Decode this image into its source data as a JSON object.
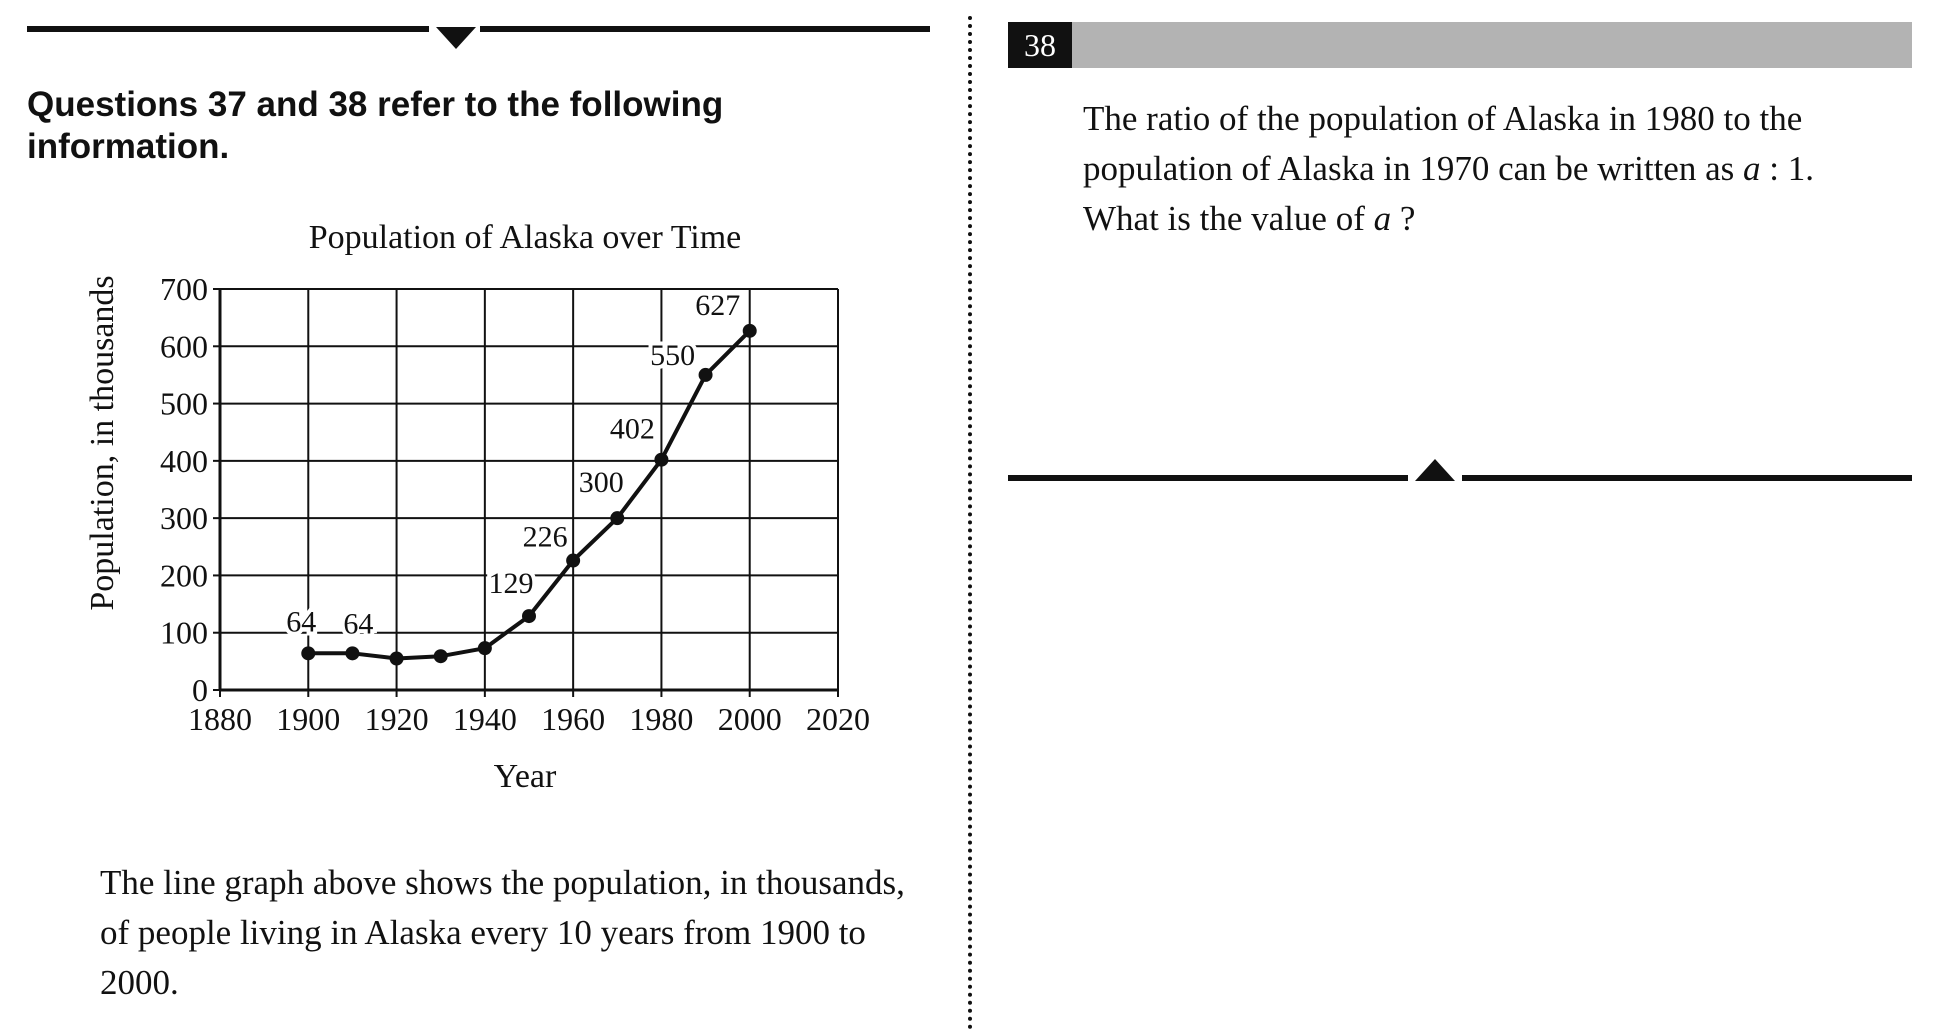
{
  "left": {
    "intro": "Questions 37 and 38 refer to the following information.",
    "passage": "The line graph above shows the population, in thousands, of people living in Alaska every 10 years from 1900 to 2000."
  },
  "question": {
    "number": "38",
    "text_part1": "The ratio of the population of Alaska in 1980 to the population of Alaska in 1970 can be written as ",
    "var": "a",
    "text_part2": " : 1. What is the value of ",
    "var2": "a",
    "text_part3": " ?"
  },
  "chart_data": {
    "type": "line",
    "title": "Population of Alaska over Time",
    "xlabel": "Year",
    "ylabel": "Population, in thousands",
    "xlim": [
      1880,
      2020
    ],
    "ylim": [
      0,
      700
    ],
    "x_ticks": [
      1880,
      1900,
      1920,
      1940,
      1960,
      1980,
      2000,
      2020
    ],
    "y_ticks": [
      0,
      100,
      200,
      300,
      400,
      500,
      600,
      700
    ],
    "grid": true,
    "series": [
      {
        "x": [
          1900,
          1910,
          1920,
          1930,
          1940,
          1950,
          1960,
          1970,
          1980,
          1990,
          2000
        ],
        "values": [
          64,
          64,
          55,
          59,
          73,
          129,
          226,
          300,
          402,
          550,
          627
        ]
      }
    ],
    "data_labels": [
      {
        "x": 1900,
        "text": "64"
      },
      {
        "x": 1910,
        "text": "64"
      },
      {
        "x": 1950,
        "text": "129"
      },
      {
        "x": 1960,
        "text": "226"
      },
      {
        "x": 1970,
        "text": "300"
      },
      {
        "x": 1980,
        "text": "402"
      },
      {
        "x": 1990,
        "text": "550"
      },
      {
        "x": 2000,
        "text": "627"
      }
    ]
  }
}
